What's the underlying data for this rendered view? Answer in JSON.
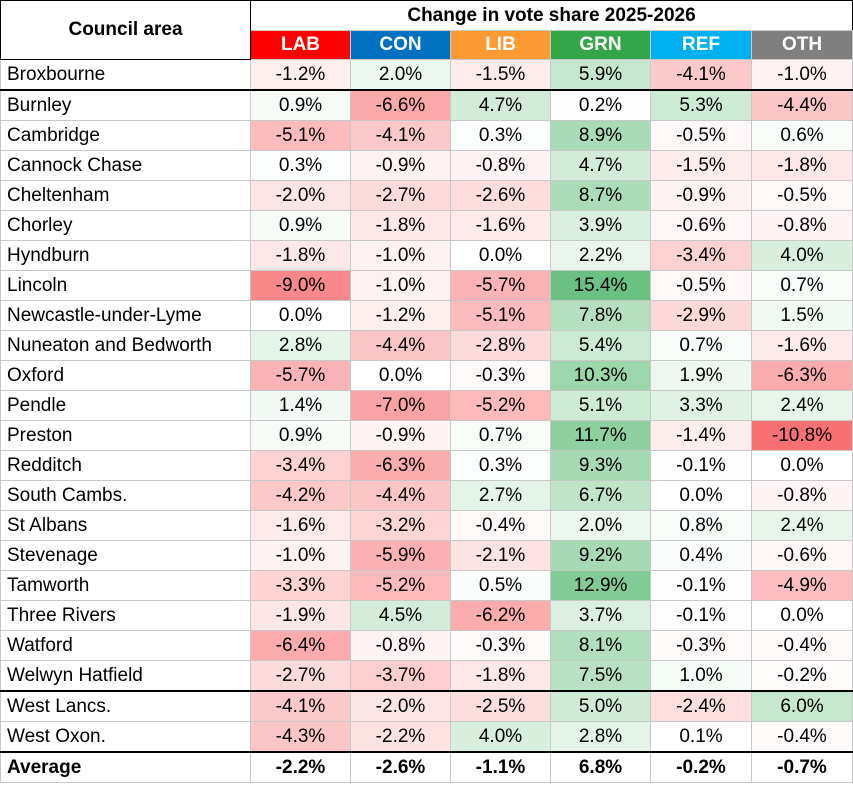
{
  "colors": {
    "LAB": "#ff0000",
    "CON": "#0070c0",
    "LIB": "#ff9933",
    "GRN": "#33a64a",
    "REF": "#00b0f0",
    "OTH": "#7f7f7f",
    "scale_positive": "#63be7b",
    "scale_negative": "#f8696b"
  },
  "chart_data": {
    "type": "table",
    "title": "Change in vote share 2025-2026",
    "row_header": "Council area",
    "columns": [
      "LAB",
      "CON",
      "LIB",
      "GRN",
      "REF",
      "OTH"
    ],
    "rows": [
      {
        "area": "Broxbourne",
        "values": [
          -1.2,
          2.0,
          -1.5,
          5.9,
          -4.1,
          -1.0
        ]
      },
      {
        "area": "Burnley",
        "values": [
          0.9,
          -6.6,
          4.7,
          0.2,
          5.3,
          -4.4
        ]
      },
      {
        "area": "Cambridge",
        "values": [
          -5.1,
          -4.1,
          0.3,
          8.9,
          -0.5,
          0.6
        ]
      },
      {
        "area": "Cannock Chase",
        "values": [
          0.3,
          -0.9,
          -0.8,
          4.7,
          -1.5,
          -1.8
        ]
      },
      {
        "area": "Cheltenham",
        "values": [
          -2.0,
          -2.7,
          -2.6,
          8.7,
          -0.9,
          -0.5
        ]
      },
      {
        "area": "Chorley",
        "values": [
          0.9,
          -1.8,
          -1.6,
          3.9,
          -0.6,
          -0.8
        ]
      },
      {
        "area": "Hyndburn",
        "values": [
          -1.8,
          -1.0,
          0.0,
          2.2,
          -3.4,
          4.0
        ]
      },
      {
        "area": "Lincoln",
        "values": [
          -9.0,
          -1.0,
          -5.7,
          15.4,
          -0.5,
          0.7
        ]
      },
      {
        "area": "Newcastle-under-Lyme",
        "values": [
          0.0,
          -1.2,
          -5.1,
          7.8,
          -2.9,
          1.5
        ]
      },
      {
        "area": "Nuneaton and Bedworth",
        "values": [
          2.8,
          -4.4,
          -2.8,
          5.4,
          0.7,
          -1.6
        ]
      },
      {
        "area": "Oxford",
        "values": [
          -5.7,
          0.0,
          -0.3,
          10.3,
          1.9,
          -6.3
        ]
      },
      {
        "area": "Pendle",
        "values": [
          1.4,
          -7.0,
          -5.2,
          5.1,
          3.3,
          2.4
        ]
      },
      {
        "area": "Preston",
        "values": [
          0.9,
          -0.9,
          0.7,
          11.7,
          -1.4,
          -10.8
        ]
      },
      {
        "area": "Redditch",
        "values": [
          -3.4,
          -6.3,
          0.3,
          9.3,
          -0.1,
          0.0
        ]
      },
      {
        "area": "South Cambs.",
        "values": [
          -4.2,
          -4.4,
          2.7,
          6.7,
          0.0,
          -0.8
        ]
      },
      {
        "area": "St Albans",
        "values": [
          -1.6,
          -3.2,
          -0.4,
          2.0,
          0.8,
          2.4
        ]
      },
      {
        "area": "Stevenage",
        "values": [
          -1.0,
          -5.9,
          -2.1,
          9.2,
          0.4,
          -0.6
        ]
      },
      {
        "area": "Tamworth",
        "values": [
          -3.3,
          -5.2,
          0.5,
          12.9,
          -0.1,
          -4.9
        ]
      },
      {
        "area": "Three Rivers",
        "values": [
          -1.9,
          4.5,
          -6.2,
          3.7,
          -0.1,
          0.0
        ]
      },
      {
        "area": "Watford",
        "values": [
          -6.4,
          -0.8,
          -0.3,
          8.1,
          -0.3,
          -0.4
        ]
      },
      {
        "area": "Welwyn Hatfield",
        "values": [
          -2.7,
          -3.7,
          -1.8,
          7.5,
          1.0,
          -0.2
        ]
      },
      {
        "area": "West Lancs.",
        "values": [
          -4.1,
          -2.0,
          -2.5,
          5.0,
          -2.4,
          6.0
        ]
      },
      {
        "area": "West Oxon.",
        "values": [
          -4.3,
          -2.2,
          4.0,
          2.8,
          0.1,
          -0.4
        ]
      }
    ],
    "average": {
      "label": "Average",
      "values": [
        -2.2,
        -2.6,
        -1.1,
        6.8,
        -0.2,
        -0.7
      ]
    },
    "unit": "%",
    "color_scale": {
      "min": -10.8,
      "max": 15.4
    }
  }
}
